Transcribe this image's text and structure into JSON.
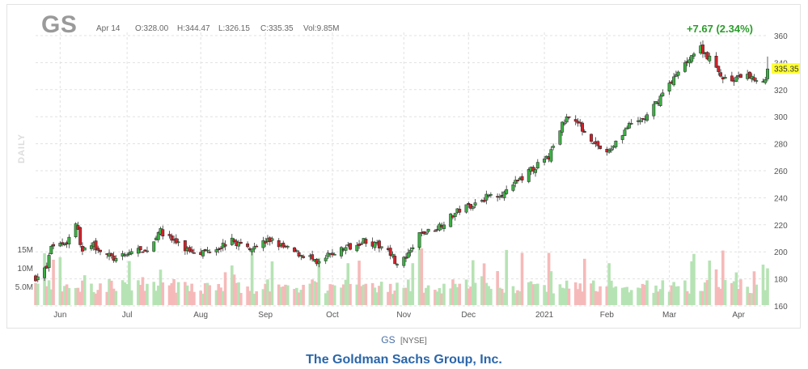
{
  "header": {
    "ticker": "GS",
    "date": "Apr 14",
    "open": "O:328.00",
    "high": "H:344.47",
    "low": "L:326.15",
    "close": "C:335.35",
    "volume": "Vol:9.85M",
    "change": "+7.67 (2.34%)",
    "period": "DAILY"
  },
  "footer": {
    "symbol": "GS",
    "exchange": "[NYSE]",
    "company": "The Goldman Sachs Group, Inc."
  },
  "colors": {
    "up": "#3cb043",
    "down": "#d0232b",
    "vol_up": "#b6e3b4",
    "vol_down": "#f6b9b9",
    "price_tag": "#ffff33",
    "grid": "#e1e1e1"
  },
  "chart_data": {
    "type": "candlestick",
    "xlabel": "",
    "ylabel": "",
    "ylim": [
      160,
      360
    ],
    "y_ticks": [
      160,
      180,
      200,
      220,
      240,
      260,
      280,
      300,
      320,
      340,
      360
    ],
    "volume_ticks": [
      "5.0M",
      "10M",
      "15M"
    ],
    "volume_tick_values": [
      5,
      10,
      15
    ],
    "last_price": "335.35",
    "x_ticks": [
      "Jun",
      "Jul",
      "Aug",
      "Sep",
      "Oct",
      "Nov",
      "Dec",
      "2021",
      "Feb",
      "Mar",
      "Apr"
    ],
    "x_tick_dates": [
      "2020-06-01",
      "2020-07-01",
      "2020-08-03",
      "2020-09-01",
      "2020-10-01",
      "2020-11-02",
      "2020-12-01",
      "2021-01-04",
      "2021-02-01",
      "2021-03-01",
      "2021-04-01"
    ],
    "date_range": [
      "2020-05-21",
      "2021-04-14"
    ],
    "close_path": [
      [
        "2020-05-21",
        181
      ],
      [
        "2020-05-26",
        188
      ],
      [
        "2020-05-28",
        205
      ],
      [
        "2020-06-04",
        207
      ],
      [
        "2020-06-08",
        222
      ],
      [
        "2020-06-11",
        200
      ],
      [
        "2020-06-16",
        205
      ],
      [
        "2020-06-22",
        198
      ],
      [
        "2020-06-26",
        194
      ],
      [
        "2020-07-01",
        198
      ],
      [
        "2020-07-06",
        203
      ],
      [
        "2020-07-08",
        198
      ],
      [
        "2020-07-13",
        208
      ],
      [
        "2020-07-15",
        216
      ],
      [
        "2020-07-21",
        209
      ],
      [
        "2020-07-27",
        202
      ],
      [
        "2020-08-04",
        200
      ],
      [
        "2020-08-10",
        203
      ],
      [
        "2020-08-17",
        208
      ],
      [
        "2020-08-24",
        203
      ],
      [
        "2020-08-31",
        207
      ],
      [
        "2020-09-04",
        209
      ],
      [
        "2020-09-08",
        204
      ],
      [
        "2020-09-15",
        199
      ],
      [
        "2020-09-21",
        196
      ],
      [
        "2020-09-24",
        190
      ],
      [
        "2020-09-30",
        198
      ],
      [
        "2020-10-07",
        203
      ],
      [
        "2020-10-12",
        206
      ],
      [
        "2020-10-15",
        209
      ],
      [
        "2020-10-20",
        205
      ],
      [
        "2020-10-26",
        203
      ],
      [
        "2020-10-30",
        190
      ],
      [
        "2020-11-04",
        197
      ],
      [
        "2020-11-09",
        213
      ],
      [
        "2020-11-16",
        217
      ],
      [
        "2020-11-20",
        222
      ],
      [
        "2020-11-27",
        231
      ],
      [
        "2020-12-04",
        236
      ],
      [
        "2020-12-11",
        242
      ],
      [
        "2020-12-18",
        244
      ],
      [
        "2020-12-24",
        254
      ],
      [
        "2020-12-31",
        263
      ],
      [
        "2021-01-06",
        270
      ],
      [
        "2021-01-11",
        291
      ],
      [
        "2021-01-15",
        302
      ],
      [
        "2021-01-20",
        293
      ],
      [
        "2021-01-27",
        280
      ],
      [
        "2021-02-01",
        272
      ],
      [
        "2021-02-05",
        282
      ],
      [
        "2021-02-10",
        292
      ],
      [
        "2021-02-19",
        300
      ],
      [
        "2021-02-24",
        312
      ],
      [
        "2021-03-01",
        325
      ],
      [
        "2021-03-05",
        332
      ],
      [
        "2021-03-10",
        344
      ],
      [
        "2021-03-15",
        351
      ],
      [
        "2021-03-19",
        343
      ],
      [
        "2021-03-24",
        330
      ],
      [
        "2021-03-30",
        327
      ],
      [
        "2021-04-05",
        330
      ],
      [
        "2021-04-09",
        328
      ],
      [
        "2021-04-13",
        327
      ],
      [
        "2021-04-14",
        335.35
      ]
    ]
  }
}
